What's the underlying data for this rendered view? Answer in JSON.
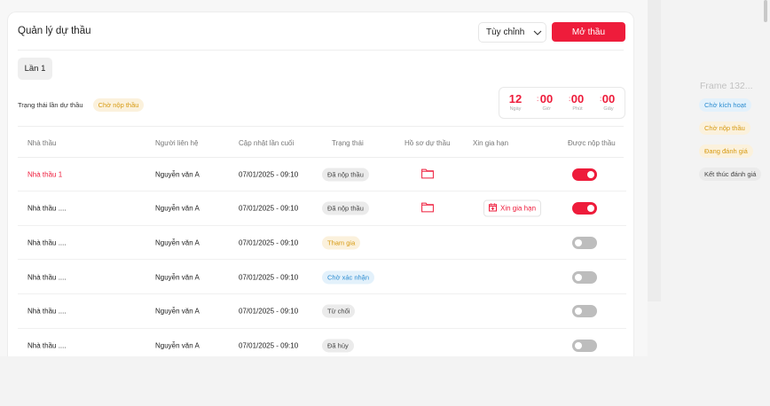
{
  "header": {
    "title": "Quản lý dự thầu",
    "custom_label": "Tùy chỉnh",
    "open_label": "Mở thầu"
  },
  "round": {
    "label": "Lần 1",
    "status_label": "Trạng thái lần dự thầu",
    "status": "Chờ nộp thầu"
  },
  "timer": {
    "days": "12",
    "hours": "00",
    "minutes": "00",
    "seconds": "00",
    "days_label": "Ngày",
    "hours_label": "Giờ",
    "minutes_label": "Phút",
    "seconds_label": "Giây",
    "sep": ":"
  },
  "table": {
    "headers": [
      "Nhà thầu",
      "Người liên hệ",
      "Cập nhật lần cuối",
      "Trạng thái",
      "Hồ sơ dự thầu",
      "Xin gia hạn",
      "Được nộp thầu"
    ],
    "rows": [
      {
        "name": "Nhà thầu 1",
        "contact": "Nguyễn văn A",
        "updated": "07/01/2025 - 09:10",
        "status": "Đã nộp thầu",
        "status_color": "gray",
        "has_file": true,
        "extension": "",
        "allowed": true
      },
      {
        "name": "Nhà thầu ....",
        "contact": "Nguyễn văn A",
        "updated": "07/01/2025 - 09:10",
        "status": "Đã nộp thầu",
        "status_color": "gray",
        "has_file": true,
        "extension": "Xin gia hạn",
        "allowed": true
      },
      {
        "name": "Nhà thầu ....",
        "contact": "Nguyễn văn A",
        "updated": "07/01/2025 - 09:10",
        "status": "Tham gia",
        "status_color": "yellow",
        "has_file": false,
        "extension": "",
        "allowed": false
      },
      {
        "name": "Nhà thầu ....",
        "contact": "Nguyễn văn A",
        "updated": "07/01/2025 - 09:10",
        "status": "Chờ xác nhận",
        "status_color": "blue",
        "has_file": false,
        "extension": "",
        "allowed": false
      },
      {
        "name": "Nhà thầu ....",
        "contact": "Nguyễn văn A",
        "updated": "07/01/2025 - 09:10",
        "status": "Từ chối",
        "status_color": "gray",
        "has_file": false,
        "extension": "",
        "allowed": false
      },
      {
        "name": "Nhà thầu ....",
        "contact": "Nguyễn văn A",
        "updated": "07/01/2025 - 09:10",
        "status": "Đã hủy",
        "status_color": "gray",
        "has_file": false,
        "extension": "",
        "allowed": false
      }
    ]
  },
  "side": {
    "frame_label": "Frame 132...",
    "badges": [
      {
        "label": "Chờ kích hoạt",
        "color": "blue"
      },
      {
        "label": "Chờ nộp thầu",
        "color": "yellow"
      },
      {
        "label": "Đang đánh giá",
        "color": "yellow"
      },
      {
        "label": "Kết thúc đánh giá",
        "color": "gray"
      }
    ]
  },
  "colors": {
    "accent": "#ee1c3b"
  }
}
